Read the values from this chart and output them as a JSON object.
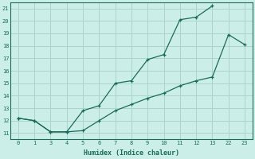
{
  "xlabel": "Humidex (Indice chaleur)",
  "bg_color": "#cceee8",
  "line_color": "#1a6b5a",
  "grid_color": "#aad4cc",
  "xtick_labels": [
    "0",
    "1",
    "3",
    "4",
    "5",
    "6",
    "7",
    "8",
    "9",
    "10",
    "11",
    "12",
    "13",
    "22",
    "23"
  ],
  "xtick_positions": [
    0,
    1,
    2,
    3,
    4,
    5,
    6,
    7,
    8,
    9,
    10,
    11,
    12,
    13,
    14
  ],
  "curve1_ix": [
    0,
    1,
    2,
    3,
    4,
    5,
    6,
    7,
    8,
    9,
    10,
    11,
    12
  ],
  "curve1_y": [
    12.2,
    12.0,
    11.1,
    11.1,
    12.8,
    13.2,
    15.0,
    15.2,
    16.9,
    17.3,
    20.1,
    20.3,
    21.2
  ],
  "curve2_ix": [
    0,
    1,
    2,
    3,
    4,
    5,
    6,
    7,
    8,
    9,
    10,
    11,
    12,
    13,
    14
  ],
  "curve2_y": [
    12.2,
    12.0,
    11.1,
    11.1,
    11.2,
    12.0,
    12.8,
    13.3,
    13.8,
    14.2,
    14.8,
    15.2,
    15.5,
    18.9,
    18.1
  ],
  "yticks": [
    11,
    12,
    13,
    14,
    15,
    16,
    17,
    18,
    19,
    20,
    21
  ],
  "xlim": [
    -0.5,
    14.5
  ],
  "ylim": [
    10.5,
    21.5
  ]
}
